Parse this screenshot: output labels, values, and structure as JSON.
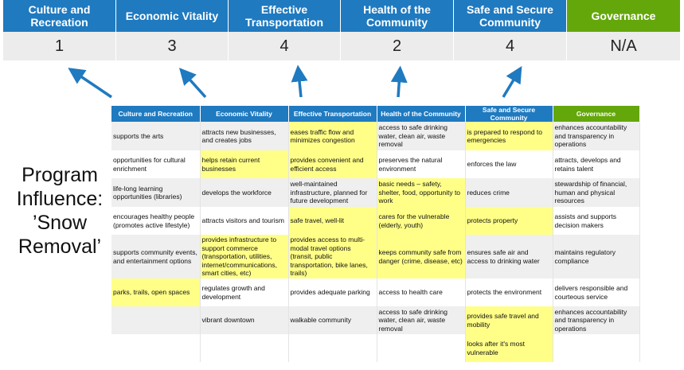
{
  "categories": [
    {
      "label": "Culture and Recreation",
      "score": "1"
    },
    {
      "label": "Economic Vitality",
      "score": "3"
    },
    {
      "label": "Effective Transportation",
      "score": "4"
    },
    {
      "label": "Health of the Community",
      "score": "2"
    },
    {
      "label": "Safe and Secure Community",
      "score": "4"
    },
    {
      "label": "Governance",
      "score": "N/A"
    }
  ],
  "program_label": "Program Influence: ’Snow Removal’",
  "colors": {
    "header_blue": "#1f7ac0",
    "governance_green": "#64a70b",
    "highlight_yellow": "#ffff88",
    "arrow": "#1f7ac0"
  },
  "table": {
    "headers": [
      "Culture and Recreation",
      "Economic Vitality",
      "Effective Transportation",
      "Health of the Community",
      "Safe and Secure Community",
      "Governance"
    ],
    "rows": [
      {
        "cells": [
          "supports the arts",
          "attracts new businesses, and creates jobs",
          "eases traffic flow and minimizes congestion",
          "access to safe drinking water, clean air, waste removal",
          "is prepared to respond to emergencies",
          "enhances accountability and transparency in operations"
        ],
        "highlight": [
          false,
          false,
          true,
          false,
          true,
          false
        ]
      },
      {
        "cells": [
          "opportunities for cultural enrichment",
          "helps retain current businesses",
          "provides convenient and efficient access",
          "preserves the natural environment",
          "enforces the law",
          "attracts, develops and retains talent"
        ],
        "highlight": [
          false,
          true,
          true,
          false,
          false,
          false
        ]
      },
      {
        "cells": [
          "life-long learning opportunities (libraries)",
          "develops the workforce",
          "well-maintained infrastructure, planned for future development",
          "basic needs – safety, shelter, food, opportunity to work",
          "reduces crime",
          "stewardship of financial, human and physical resources"
        ],
        "highlight": [
          false,
          false,
          false,
          true,
          false,
          false
        ]
      },
      {
        "cells": [
          "encourages healthy people (promotes active lifestyle)",
          "attracts visitors and tourism",
          "safe travel, well-lit",
          "cares for the vulnerable (elderly, youth)",
          "protects property",
          "assists and supports decision makers"
        ],
        "highlight": [
          false,
          false,
          true,
          true,
          true,
          false
        ]
      },
      {
        "cells": [
          "supports community events, and entertainment options",
          "provides infrastructure to support commerce (transportation, utilities, internet/communications, smart cities, etc)",
          "provides access to multi-modal travel options (transit, public transportation, bike lanes, trails)",
          "keeps community safe from danger (crime, disease, etc)",
          "ensures safe air and access to drinking water",
          "maintains regulatory compliance"
        ],
        "highlight": [
          false,
          true,
          true,
          true,
          false,
          false
        ]
      },
      {
        "cells": [
          "parks, trails, open spaces",
          "regulates growth and development",
          "provides adequate parking",
          "access to health care",
          "protects the environment",
          "delivers responsible and courteous service"
        ],
        "highlight": [
          true,
          false,
          false,
          false,
          false,
          false
        ]
      },
      {
        "cells": [
          "",
          "vibrant downtown",
          "walkable community",
          "access to safe drinking water, clean air, waste removal",
          "provides safe travel and mobility",
          "enhances accountability and transparency in operations"
        ],
        "highlight": [
          false,
          false,
          false,
          false,
          true,
          false
        ]
      },
      {
        "cells": [
          "",
          "",
          "",
          "",
          "looks after it's most vulnerable",
          ""
        ],
        "highlight": [
          false,
          false,
          false,
          false,
          true,
          false
        ]
      }
    ]
  }
}
